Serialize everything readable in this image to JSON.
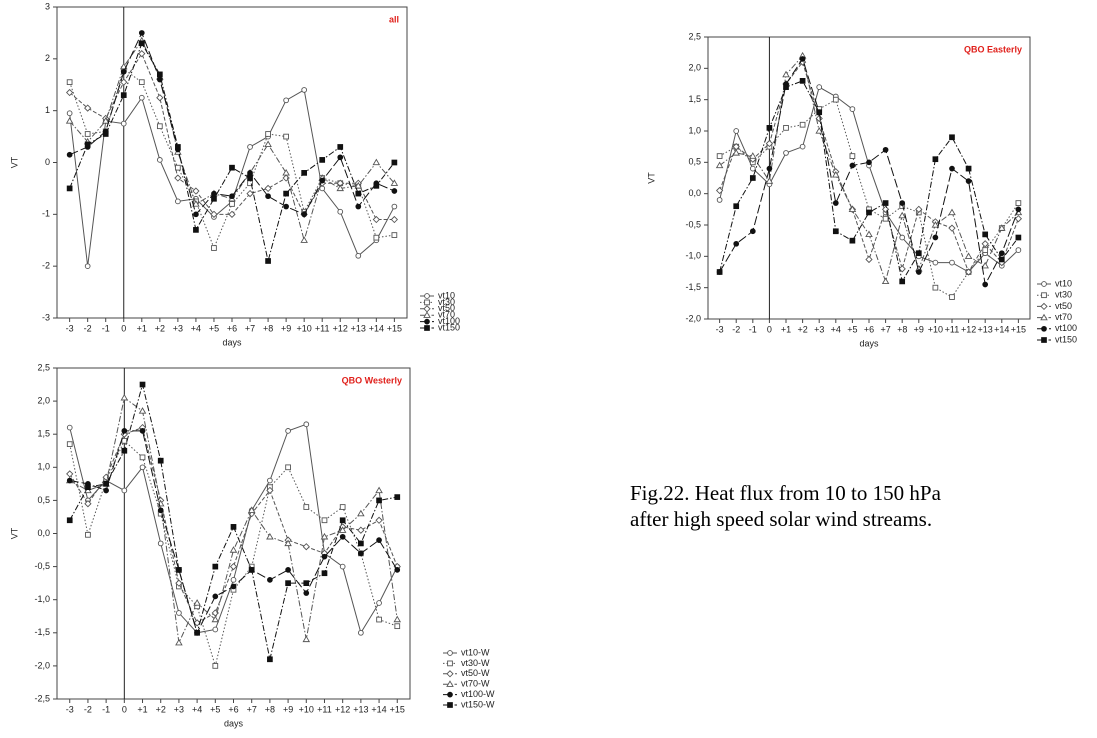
{
  "chart_data": [
    {
      "type": "line",
      "title": "all",
      "title_color": "#e0201b",
      "x_label": "days",
      "y_label": "VT",
      "x": [
        -3,
        -2,
        -1,
        0,
        1,
        2,
        3,
        4,
        5,
        6,
        7,
        8,
        9,
        10,
        11,
        12,
        13,
        14,
        15
      ],
      "xlim": [
        -3.7,
        15.7
      ],
      "xticks": [
        -3,
        -2,
        -1,
        0,
        {
          "value": 1,
          "label": "+1"
        },
        {
          "value": 2,
          "label": "+2"
        },
        {
          "value": 3,
          "label": "+3"
        },
        {
          "value": 4,
          "label": "+4"
        },
        {
          "value": 5,
          "label": "+5"
        },
        {
          "value": 6,
          "label": "+6"
        },
        {
          "value": 7,
          "label": "+7"
        },
        {
          "value": 8,
          "label": "+8"
        },
        {
          "value": 9,
          "label": "+9"
        },
        {
          "value": 10,
          "label": "+10"
        },
        {
          "value": 11,
          "label": "+11"
        },
        {
          "value": 12,
          "label": "+12"
        },
        {
          "value": 13,
          "label": "+13"
        },
        {
          "value": 14,
          "label": "+14"
        },
        {
          "value": 15,
          "label": "+15"
        }
      ],
      "ylim": [
        -3,
        3
      ],
      "yticks": [
        -3,
        -2,
        -1,
        0,
        1,
        2,
        3
      ],
      "legend": "outside-bottom-right",
      "series": [
        {
          "name": "vt10",
          "color": "#555555",
          "marker": "circle-open",
          "linestyle": "solid",
          "values": [
            0.95,
            -2.0,
            0.8,
            0.75,
            1.25,
            0.05,
            -0.75,
            -0.7,
            -1.05,
            -0.75,
            0.3,
            0.5,
            1.2,
            1.4,
            -0.5,
            -0.95,
            -1.8,
            -1.5,
            -0.85
          ]
        },
        {
          "name": "vt30",
          "color": "#555555",
          "marker": "square-open",
          "linestyle": "dotted",
          "values": [
            1.55,
            0.55,
            0.6,
            1.8,
            1.55,
            0.7,
            -0.1,
            -0.75,
            -1.65,
            -0.8,
            -0.4,
            0.55,
            0.5,
            -0.95,
            -0.3,
            -0.4,
            -0.45,
            -1.45,
            -1.4
          ]
        },
        {
          "name": "vt50",
          "color": "#555555",
          "marker": "diamond-open",
          "linestyle": "dashed",
          "values": [
            1.35,
            1.05,
            0.85,
            1.55,
            2.1,
            1.25,
            -0.3,
            -0.55,
            -1.0,
            -1.0,
            -0.6,
            -0.5,
            -0.3,
            -1.0,
            -0.4,
            -0.4,
            -0.4,
            -1.1,
            -1.1
          ]
        },
        {
          "name": "vt70",
          "color": "#555555",
          "marker": "triangle-open",
          "linestyle": "dashdot",
          "values": [
            0.8,
            0.4,
            0.8,
            1.85,
            2.35,
            1.65,
            0.2,
            -0.8,
            -0.6,
            -0.7,
            -0.2,
            0.35,
            -0.2,
            -1.5,
            -0.3,
            -0.5,
            -0.45,
            0.0,
            -0.4
          ]
        },
        {
          "name": "vt100",
          "color": "#111111",
          "marker": "circle-filled",
          "linestyle": "longdash",
          "values": [
            0.15,
            0.3,
            0.6,
            1.75,
            2.5,
            1.6,
            0.25,
            -1.0,
            -0.6,
            -0.65,
            -0.2,
            -0.65,
            -0.85,
            -1.0,
            -0.35,
            0.1,
            -0.85,
            -0.4,
            -0.55
          ]
        },
        {
          "name": "vt150",
          "color": "#111111",
          "marker": "square-filled",
          "linestyle": "dashdot",
          "values": [
            -0.5,
            0.35,
            0.55,
            1.3,
            2.3,
            1.7,
            0.3,
            -1.3,
            -0.7,
            -0.1,
            -0.3,
            -1.9,
            -0.6,
            -0.2,
            0.05,
            0.3,
            -0.6,
            -0.45,
            0.0
          ]
        }
      ]
    },
    {
      "type": "line",
      "title": "QBO Easterly",
      "title_color": "#e0201b",
      "x_label": "days",
      "y_label": "VT",
      "x": [
        -3,
        -2,
        -1,
        0,
        1,
        2,
        3,
        4,
        5,
        6,
        7,
        8,
        9,
        10,
        11,
        12,
        13,
        14,
        15
      ],
      "xlim": [
        -3.7,
        15.7
      ],
      "xticks": [
        -3,
        -2,
        -1,
        0,
        {
          "value": 1,
          "label": "+1"
        },
        {
          "value": 2,
          "label": "+2"
        },
        {
          "value": 3,
          "label": "+3"
        },
        {
          "value": 4,
          "label": "+4"
        },
        {
          "value": 5,
          "label": "+5"
        },
        {
          "value": 6,
          "label": "+6"
        },
        {
          "value": 7,
          "label": "+7"
        },
        {
          "value": 8,
          "label": "+8"
        },
        {
          "value": 9,
          "label": "+9"
        },
        {
          "value": 10,
          "label": "+10"
        },
        {
          "value": 11,
          "label": "+11"
        },
        {
          "value": 12,
          "label": "+12"
        },
        {
          "value": 13,
          "label": "+13"
        },
        {
          "value": 14,
          "label": "+14"
        },
        {
          "value": 15,
          "label": "+15"
        }
      ],
      "ylim": [
        -2.0,
        2.5
      ],
      "yticks": [
        {
          "value": -2.0,
          "label": "-2,0"
        },
        {
          "value": -1.5,
          "label": "-1,5"
        },
        {
          "value": -1.0,
          "label": "-1,0"
        },
        {
          "value": -0.5,
          "label": "-0,5"
        },
        {
          "value": 0.0,
          "label": "0,0"
        },
        {
          "value": 0.5,
          "label": "0,5"
        },
        {
          "value": 1.0,
          "label": "1,0"
        },
        {
          "value": 1.5,
          "label": "1,5"
        },
        {
          "value": 2.0,
          "label": "2,0"
        },
        {
          "value": 2.5,
          "label": "2,5"
        }
      ],
      "legend": "outside-bottom-right",
      "series": [
        {
          "name": "vt10",
          "color": "#555555",
          "marker": "circle-open",
          "linestyle": "solid",
          "values": [
            -0.1,
            1.0,
            0.4,
            0.15,
            0.65,
            0.75,
            1.7,
            1.55,
            1.35,
            0.45,
            -0.3,
            -0.7,
            -1.0,
            -1.1,
            -1.1,
            -1.25,
            -0.95,
            -1.15,
            -0.9
          ]
        },
        {
          "name": "vt30",
          "color": "#555555",
          "marker": "square-open",
          "linestyle": "dotted",
          "values": [
            0.6,
            0.75,
            0.5,
            0.75,
            1.05,
            1.1,
            1.35,
            1.5,
            0.6,
            -0.25,
            -0.4,
            -0.2,
            -0.3,
            -1.5,
            -1.65,
            -1.25,
            -0.9,
            -0.55,
            -0.15
          ]
        },
        {
          "name": "vt50",
          "color": "#555555",
          "marker": "diamond-open",
          "linestyle": "dashed",
          "values": [
            0.05,
            0.75,
            0.55,
            0.8,
            1.75,
            2.1,
            1.2,
            0.35,
            -0.25,
            -1.05,
            -0.25,
            -1.2,
            -0.25,
            -0.45,
            -0.55,
            -1.25,
            -0.8,
            -1.1,
            -0.4
          ]
        },
        {
          "name": "vt70",
          "color": "#555555",
          "marker": "triangle-open",
          "linestyle": "dashdot",
          "values": [
            0.45,
            0.65,
            0.6,
            0.2,
            1.9,
            2.2,
            1.0,
            0.3,
            -0.25,
            -0.65,
            -1.4,
            -0.35,
            -1.2,
            -0.5,
            -0.3,
            -1.0,
            -1.15,
            -0.55,
            -0.3
          ]
        },
        {
          "name": "vt100",
          "color": "#111111",
          "marker": "circle-filled",
          "linestyle": "longdash",
          "values": [
            -1.25,
            -0.8,
            -0.6,
            0.4,
            1.75,
            2.15,
            1.3,
            -0.15,
            0.45,
            0.5,
            0.7,
            -0.15,
            -1.25,
            -0.7,
            0.4,
            0.2,
            -1.45,
            -0.95,
            -0.25
          ]
        },
        {
          "name": "vt150",
          "color": "#111111",
          "marker": "square-filled",
          "linestyle": "dashdot",
          "values": [
            -1.25,
            -0.2,
            0.25,
            1.05,
            1.7,
            1.8,
            1.3,
            -0.6,
            -0.75,
            -0.3,
            -0.15,
            -1.4,
            -0.95,
            0.55,
            0.9,
            0.4,
            -0.65,
            -1.05,
            -0.7
          ]
        }
      ]
    },
    {
      "type": "line",
      "title": "QBO Westerly",
      "title_color": "#e0201b",
      "x_label": "days",
      "y_label": "VT",
      "x": [
        -3,
        -2,
        -1,
        0,
        1,
        2,
        3,
        4,
        5,
        6,
        7,
        8,
        9,
        10,
        11,
        12,
        13,
        14,
        15
      ],
      "xlim": [
        -3.7,
        15.7
      ],
      "xticks": [
        -3,
        -2,
        -1,
        0,
        {
          "value": 1,
          "label": "+1"
        },
        {
          "value": 2,
          "label": "+2"
        },
        {
          "value": 3,
          "label": "+3"
        },
        {
          "value": 4,
          "label": "+4"
        },
        {
          "value": 5,
          "label": "+5"
        },
        {
          "value": 6,
          "label": "+6"
        },
        {
          "value": 7,
          "label": "+7"
        },
        {
          "value": 8,
          "label": "+8"
        },
        {
          "value": 9,
          "label": "+9"
        },
        {
          "value": 10,
          "label": "+10"
        },
        {
          "value": 11,
          "label": "+11"
        },
        {
          "value": 12,
          "label": "+12"
        },
        {
          "value": 13,
          "label": "+13"
        },
        {
          "value": 14,
          "label": "+14"
        },
        {
          "value": 15,
          "label": "+15"
        }
      ],
      "ylim": [
        -2.5,
        2.5
      ],
      "yticks": [
        {
          "value": -2.5,
          "label": "-2,5"
        },
        {
          "value": -2.0,
          "label": "-2,0"
        },
        {
          "value": -1.5,
          "label": "-1,5"
        },
        {
          "value": -1.0,
          "label": "-1,0"
        },
        {
          "value": -0.5,
          "label": "-0,5"
        },
        {
          "value": 0.0,
          "label": "0,0"
        },
        {
          "value": 0.5,
          "label": "0,5"
        },
        {
          "value": 1.0,
          "label": "1,0"
        },
        {
          "value": 1.5,
          "label": "1,5"
        },
        {
          "value": 2.0,
          "label": "2,0"
        },
        {
          "value": 2.5,
          "label": "2,5"
        }
      ],
      "legend": "outside-bottom-right",
      "series": [
        {
          "name": "vt10-W",
          "color": "#555555",
          "marker": "circle-open",
          "linestyle": "solid",
          "values": [
            1.6,
            0.5,
            0.8,
            0.65,
            1.0,
            -0.15,
            -1.2,
            -1.5,
            -1.45,
            -0.7,
            0.35,
            0.8,
            1.55,
            1.65,
            -0.3,
            -0.5,
            -1.5,
            -1.05,
            -0.5
          ]
        },
        {
          "name": "vt30-W",
          "color": "#555555",
          "marker": "square-open",
          "linestyle": "dotted",
          "values": [
            1.35,
            -0.02,
            0.8,
            1.4,
            1.15,
            0.3,
            -0.8,
            -1.1,
            -2.0,
            -0.85,
            -0.5,
            0.7,
            1.0,
            0.4,
            0.2,
            0.4,
            -0.3,
            -1.3,
            -1.4
          ]
        },
        {
          "name": "vt50-W",
          "color": "#555555",
          "marker": "diamond-open",
          "linestyle": "dashed",
          "values": [
            0.9,
            0.45,
            0.85,
            1.5,
            1.6,
            0.5,
            -0.75,
            -1.35,
            -1.2,
            -0.5,
            0.3,
            0.65,
            -0.1,
            -0.2,
            -0.3,
            0.1,
            0.05,
            0.2,
            -0.5
          ]
        },
        {
          "name": "vt70-W",
          "color": "#555555",
          "marker": "triangle-open",
          "linestyle": "dashdot",
          "values": [
            0.8,
            0.65,
            0.75,
            2.05,
            1.85,
            0.45,
            -1.65,
            -1.05,
            -1.3,
            -0.25,
            0.35,
            -0.05,
            -0.15,
            -1.6,
            -0.05,
            0.05,
            0.3,
            0.65,
            -1.3
          ]
        },
        {
          "name": "vt100-W",
          "color": "#111111",
          "marker": "circle-filled",
          "linestyle": "longdash",
          "values": [
            0.8,
            0.75,
            0.65,
            1.55,
            1.55,
            0.35,
            -0.55,
            -1.5,
            -0.95,
            -0.8,
            -0.55,
            -0.7,
            -0.55,
            -0.9,
            -0.35,
            -0.05,
            -0.3,
            -0.1,
            -0.55
          ]
        },
        {
          "name": "vt150-W",
          "color": "#111111",
          "marker": "square-filled",
          "linestyle": "dashdot",
          "values": [
            0.2,
            0.7,
            0.75,
            1.25,
            2.25,
            1.1,
            -0.55,
            -1.5,
            -0.5,
            0.1,
            -0.55,
            -1.9,
            -0.75,
            -0.75,
            -0.6,
            0.2,
            -0.15,
            0.5,
            0.55
          ]
        }
      ]
    }
  ],
  "caption": [
    "Fig.22. Heat flux from 10 to 150 hPa",
    "after high speed solar wind streams."
  ]
}
